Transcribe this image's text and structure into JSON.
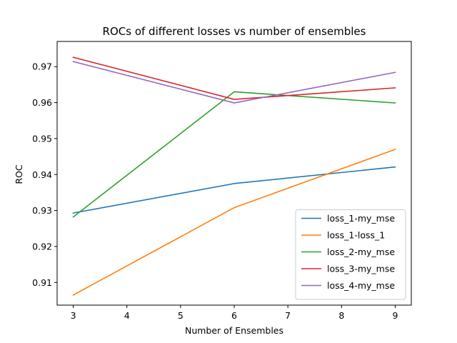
{
  "chart_data": {
    "type": "line",
    "title": "ROCs of different losses vs number of ensembles",
    "xlabel": "Number of Ensembles",
    "ylabel": "ROC",
    "x": [
      3,
      6,
      9
    ],
    "xlim": [
      2.7,
      9.3
    ],
    "ylim": [
      0.9037,
      0.977
    ],
    "xticks": [
      3,
      4,
      5,
      6,
      7,
      8,
      9
    ],
    "yticks": [
      0.91,
      0.92,
      0.93,
      0.94,
      0.95,
      0.96,
      0.97
    ],
    "ytick_labels": [
      "0.91",
      "0.92",
      "0.93",
      "0.94",
      "0.95",
      "0.96",
      "0.97"
    ],
    "grid": false,
    "legend_position": "lower-right",
    "series": [
      {
        "name": "loss_1-my_mse",
        "color": "#1f77b4",
        "values": [
          0.9293,
          0.9375,
          0.9421
        ]
      },
      {
        "name": "loss_1-loss_1",
        "color": "#ff7f0e",
        "values": [
          0.9065,
          0.9308,
          0.947
        ]
      },
      {
        "name": "loss_2-my_mse",
        "color": "#2ca02c",
        "values": [
          0.9282,
          0.963,
          0.9599
        ]
      },
      {
        "name": "loss_3-my_mse",
        "color": "#d62728",
        "values": [
          0.9726,
          0.9609,
          0.9641
        ]
      },
      {
        "name": "loss_4-my_mse",
        "color": "#9467bd",
        "values": [
          0.9714,
          0.9599,
          0.9684
        ]
      }
    ]
  }
}
